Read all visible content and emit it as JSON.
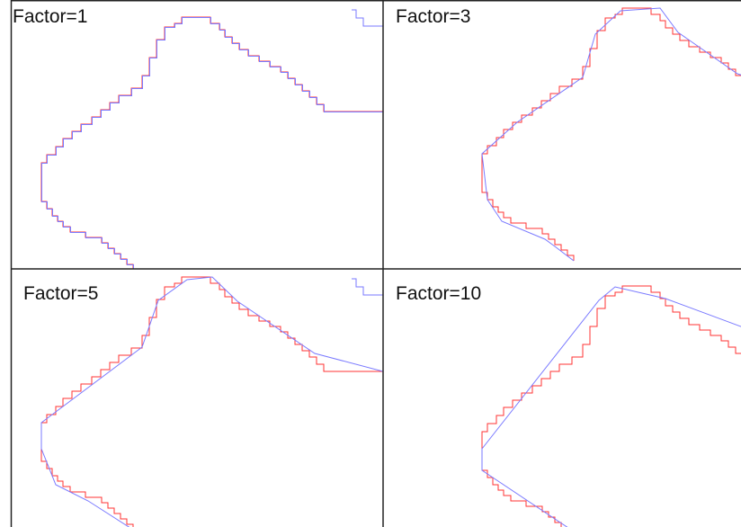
{
  "panels": [
    {
      "label": "Factor=1",
      "factor": 1
    },
    {
      "label": "Factor=3",
      "factor": 3
    },
    {
      "label": "Factor=5",
      "factor": 5
    },
    {
      "label": "Factor=10",
      "factor": 10
    }
  ],
  "colors": {
    "staircase": "#ff3333",
    "simplified": "#7a7aff",
    "border": "#222222",
    "background": "#ffffff"
  }
}
